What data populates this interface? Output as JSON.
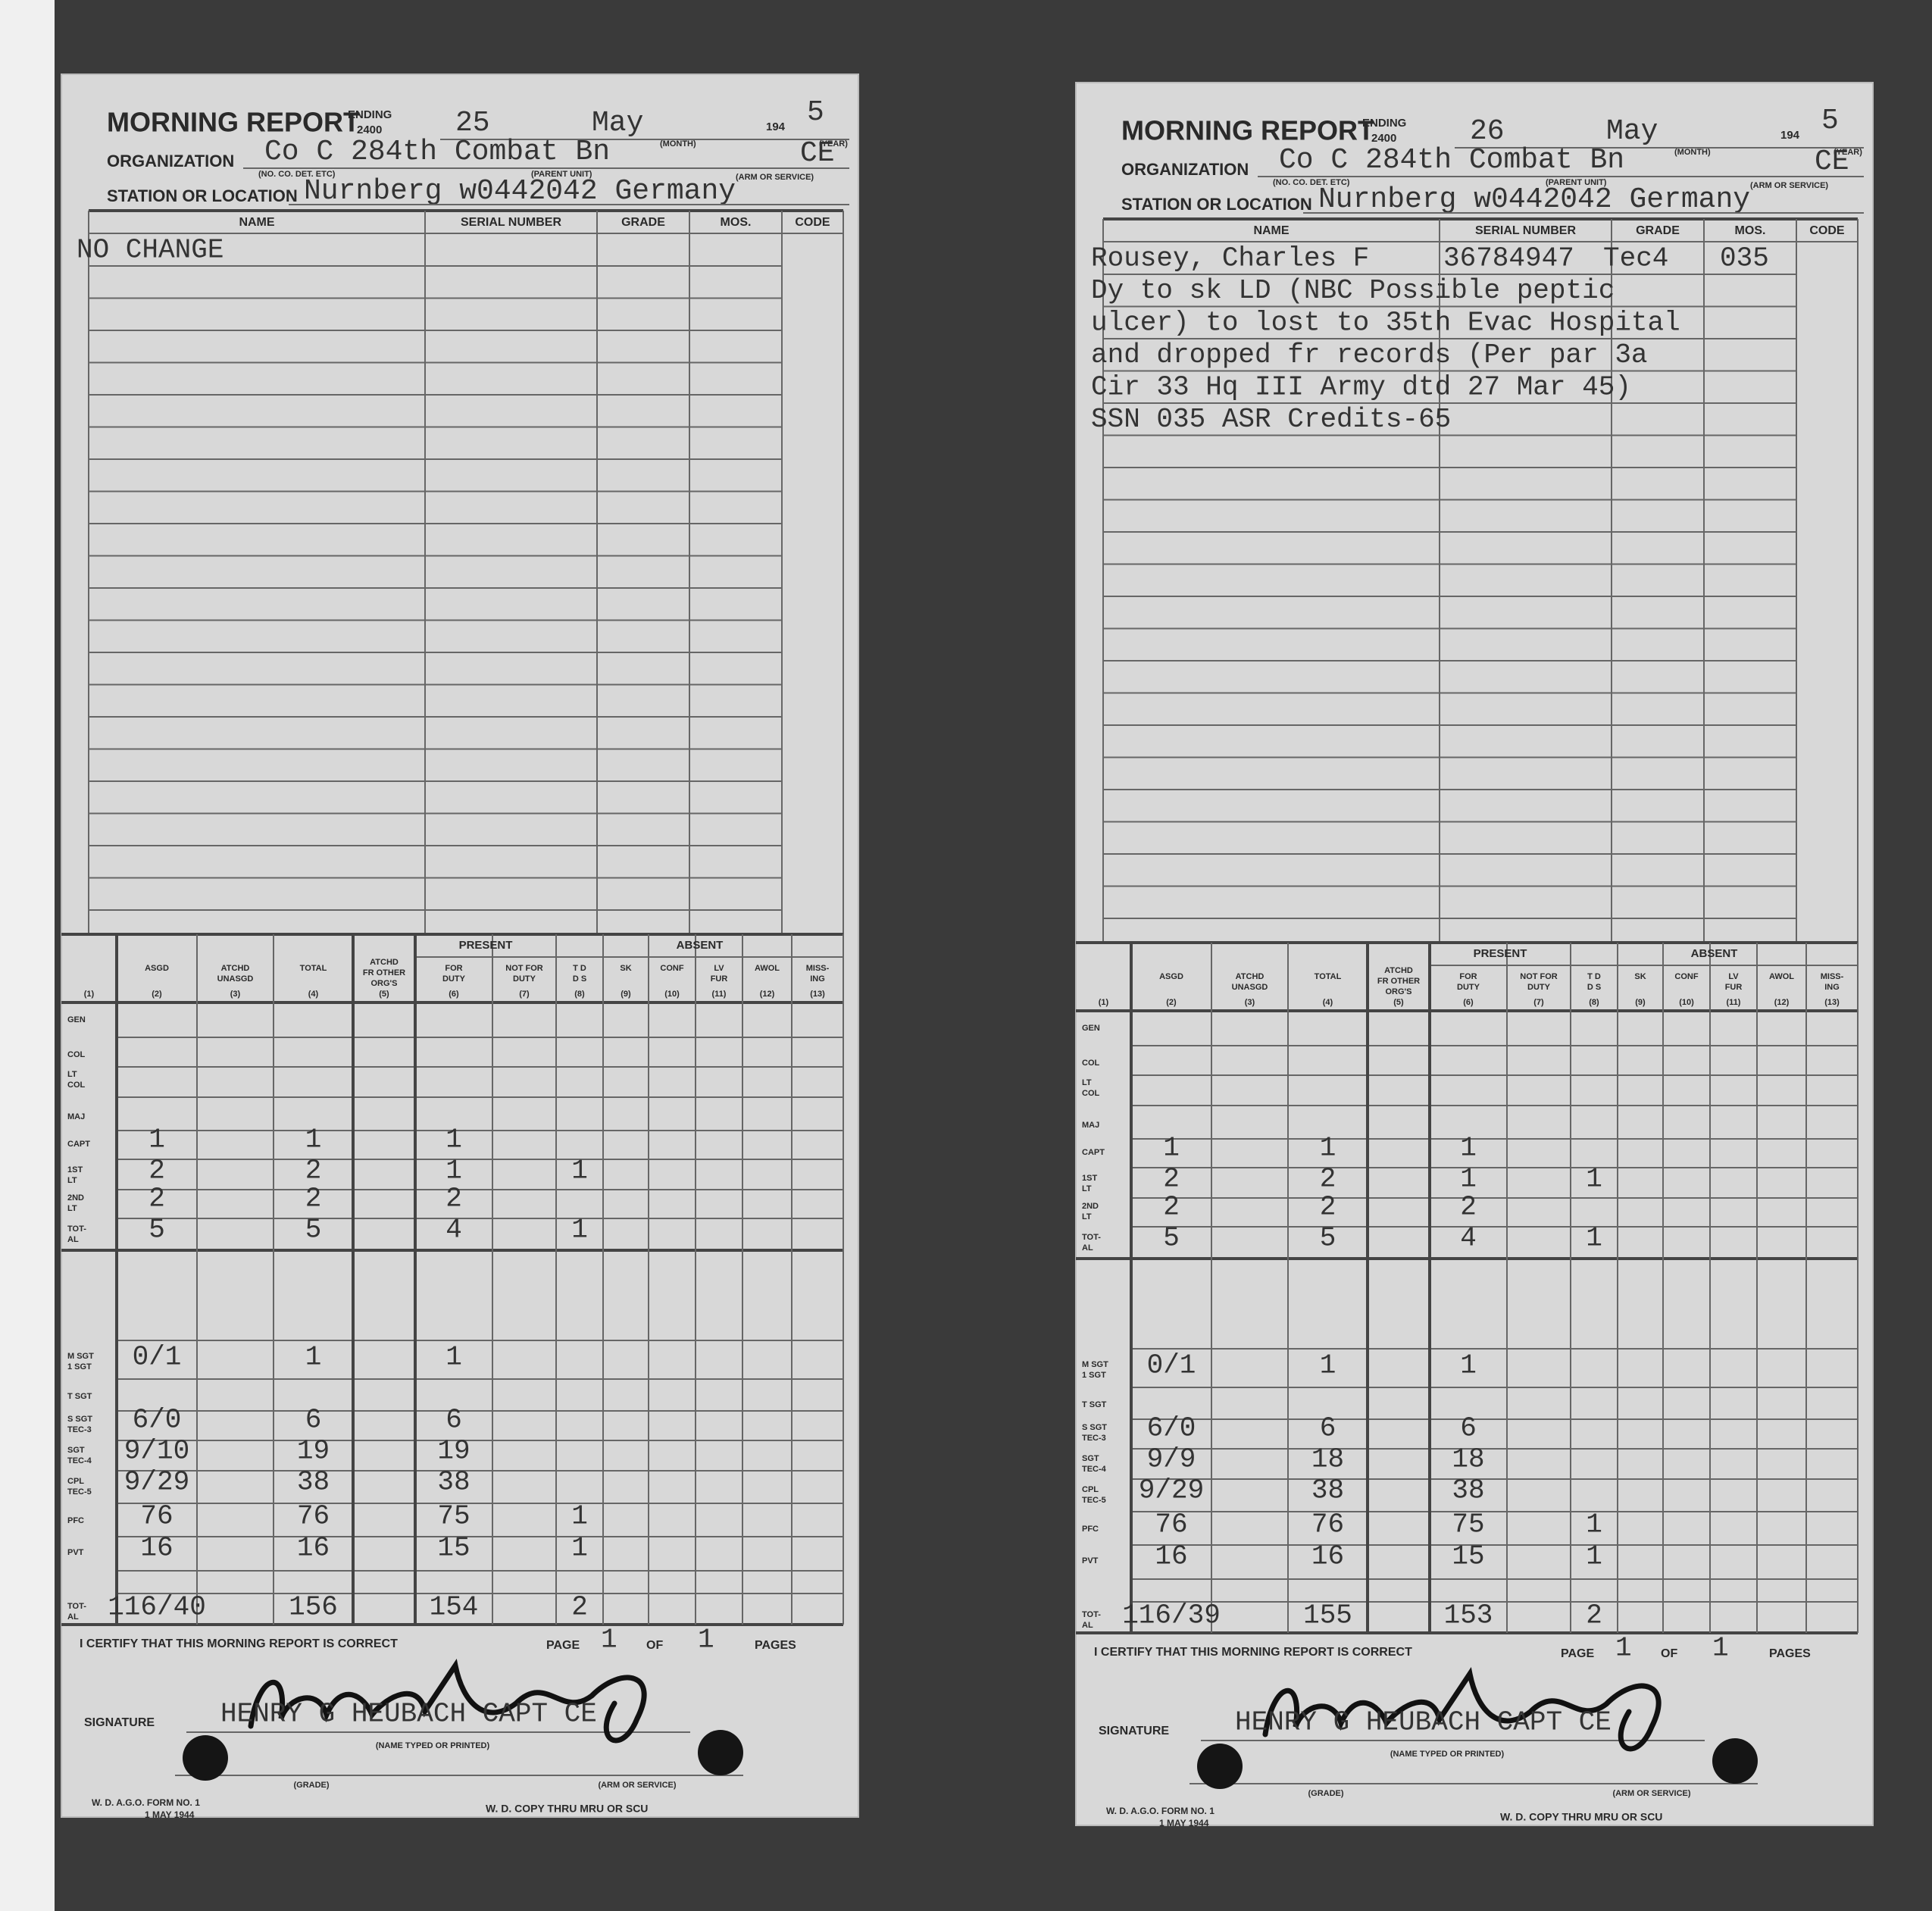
{
  "form": {
    "title": "MORNING REPORT",
    "ending": "ENDING",
    "ending_time": "2400",
    "year_prefix": "194",
    "organization": "ORGANIZATION",
    "station": "STATION OR LOCATION",
    "captions": {
      "unit": "(NO. CO. DET. ETC)",
      "parent": "(PARENT UNIT)",
      "month": "(MONTH)",
      "year": "(YEAR)",
      "arm": "(ARM OR SERVICE)"
    },
    "entry_columns": [
      "NAME",
      "SERIAL NUMBER",
      "GRADE",
      "MOS.",
      "CODE"
    ],
    "strength_groups": [
      "PRESENT",
      "ABSENT"
    ],
    "strength_columns": [
      {
        "num": "(1)"
      },
      {
        "label": [
          "ASGD"
        ],
        "num": "(2)"
      },
      {
        "label": [
          "ATCHD",
          "UNASGD"
        ],
        "num": "(3)"
      },
      {
        "label": [
          "TOTAL"
        ],
        "num": "(4)"
      },
      {
        "label": [
          "ATCHD",
          "FR OTHER",
          "ORG'S"
        ],
        "num": "(5)"
      },
      {
        "label": [
          "FOR",
          "DUTY"
        ],
        "num": "(6)"
      },
      {
        "label": [
          "NOT FOR",
          "DUTY"
        ],
        "num": "(7)"
      },
      {
        "label": [
          "T D",
          "D S"
        ],
        "num": "(8)"
      },
      {
        "label": [
          "SK"
        ],
        "num": "(9)"
      },
      {
        "label": [
          "CONF"
        ],
        "num": "(10)"
      },
      {
        "label": [
          "LV",
          "FUR"
        ],
        "num": "(11)"
      },
      {
        "label": [
          "AWOL"
        ],
        "num": "(12)"
      },
      {
        "label": [
          "MISS-",
          "ING"
        ],
        "num": "(13)"
      }
    ],
    "ranks": [
      [
        "GEN"
      ],
      [
        "COL"
      ],
      [
        "LT",
        "COL"
      ],
      [
        "MAJ"
      ],
      [
        "CAPT"
      ],
      [
        "1ST",
        "LT"
      ],
      [
        "2ND",
        "LT"
      ],
      [
        "TOT-",
        "AL"
      ],
      [
        "M SGT",
        "1 SGT"
      ],
      [
        "T SGT"
      ],
      [
        "S SGT",
        "TEC-3"
      ],
      [
        "SGT",
        "TEC-4"
      ],
      [
        "CPL",
        "TEC-5"
      ],
      [
        "PFC"
      ],
      [
        "PVT"
      ],
      [
        "TOT-",
        "AL"
      ]
    ],
    "certify": "I CERTIFY THAT THIS MORNING REPORT IS CORRECT",
    "page": "PAGE",
    "of": "OF",
    "pages": "PAGES",
    "signature": "SIGNATURE",
    "name_caption": "(NAME TYPED OR PRINTED)",
    "grade_caption": "(GRADE)",
    "arm_caption": "(ARM OR SERVICE)",
    "form_no": "W. D. A.G.O. FORM NO. 1",
    "form_date": "1 MAY 1944",
    "copy": "W. D. COPY THRU MRU OR SCU"
  },
  "reports": [
    {
      "day": 25,
      "month": "May",
      "year_digit": 5,
      "organization": "Co C 284th Combat Bn",
      "arm": "CE",
      "station": "Nurnberg w0442042 Germany",
      "entries": [
        {
          "name": "NO CHANGE"
        }
      ],
      "strength": [
        null,
        null,
        null,
        null,
        {
          "2": 1,
          "4": 1,
          "6": 1
        },
        {
          "2": 2,
          "4": 2,
          "6": 1,
          "8": 1
        },
        {
          "2": 2,
          "4": 2,
          "6": 2
        },
        {
          "2": 5,
          "4": 5,
          "6": 4,
          "8": 1
        },
        {
          "2": "0/1",
          "4": 1,
          "6": 1
        },
        null,
        {
          "2": "6/0",
          "4": 6,
          "6": 6
        },
        {
          "2": "9/10",
          "4": 19,
          "6": 19
        },
        {
          "2": "9/29",
          "4": 38,
          "6": 38
        },
        {
          "2": 76,
          "4": 76,
          "6": 75,
          "8": 1
        },
        {
          "2": 16,
          "4": 16,
          "6": 15,
          "8": 1
        },
        {
          "2": "116/40",
          "4": 156,
          "6": 154,
          "8": 2
        }
      ],
      "page_no": 1,
      "page_of": 1,
      "signer": "HENRY G HEUBACH CAPT CE"
    },
    {
      "day": 26,
      "month": "May",
      "year_digit": 5,
      "organization": "Co C 284th Combat Bn",
      "arm": "CE",
      "station": "Nurnberg w0442042 Germany",
      "entries": [
        {
          "name": "Rousey, Charles F",
          "serial": "36784947",
          "grade": "Tec4",
          "mos": "035"
        },
        {
          "text": "Dy to sk LD (NBC Possible peptic"
        },
        {
          "text": "ulcer) to lost to 35th Evac Hospital"
        },
        {
          "text": "and dropped fr records (Per par 3a"
        },
        {
          "text": "Cir 33 Hq III Army dtd 27 Mar 45)"
        },
        {
          "text": "SSN 035 ASR Credits-65"
        }
      ],
      "strength": [
        null,
        null,
        null,
        null,
        {
          "2": 1,
          "4": 1,
          "6": 1
        },
        {
          "2": 2,
          "4": 2,
          "6": 1,
          "8": 1
        },
        {
          "2": 2,
          "4": 2,
          "6": 2
        },
        {
          "2": 5,
          "4": 5,
          "6": 4,
          "8": 1
        },
        {
          "2": "0/1",
          "4": 1,
          "6": 1
        },
        null,
        {
          "2": "6/0",
          "4": 6,
          "6": 6
        },
        {
          "2": "9/9",
          "4": 18,
          "6": 18
        },
        {
          "2": "9/29",
          "4": 38,
          "6": 38
        },
        {
          "2": 76,
          "4": 76,
          "6": 75,
          "8": 1
        },
        {
          "2": 16,
          "4": 16,
          "6": 15,
          "8": 1
        },
        {
          "2": "116/39",
          "4": 155,
          "6": 153,
          "8": 2
        }
      ],
      "page_no": 1,
      "page_of": 1,
      "signer": "HENRY G HEUBACH CAPT CE"
    }
  ]
}
